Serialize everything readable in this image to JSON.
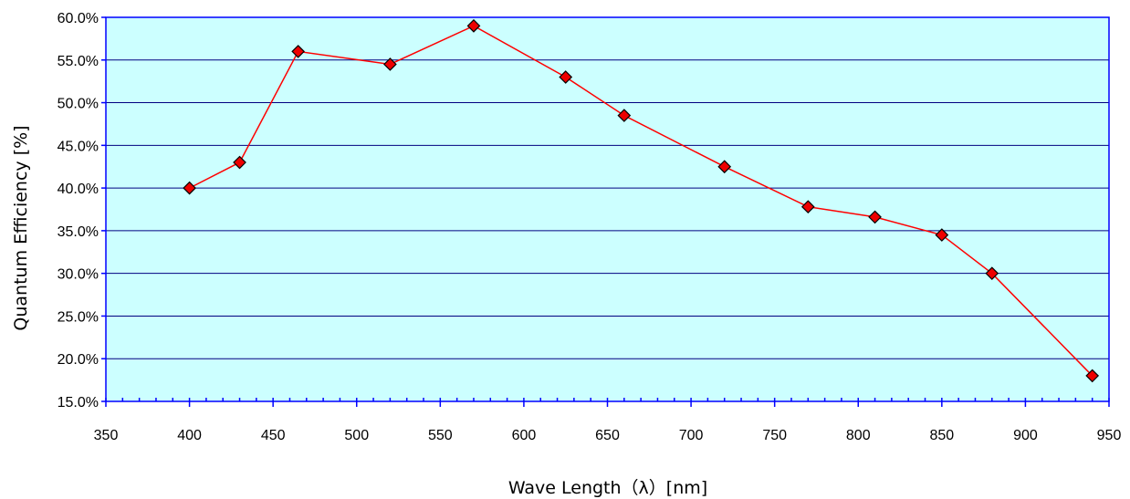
{
  "chart_data": {
    "type": "line",
    "xlabel": "Wave Length（λ）[nm]",
    "ylabel": "Quantum Efficiency [%]",
    "xlim": [
      350,
      950
    ],
    "ylim": [
      15,
      60
    ],
    "x_ticks": [
      "350",
      "400",
      "450",
      "500",
      "550",
      "600",
      "650",
      "700",
      "750",
      "800",
      "850",
      "900",
      "950"
    ],
    "y_ticks": [
      "15.0%",
      "20.0%",
      "25.0%",
      "30.0%",
      "35.0%",
      "40.0%",
      "45.0%",
      "50.0%",
      "55.0%",
      "60.0%"
    ],
    "grid": "horizontal",
    "legend": "none",
    "series": [
      {
        "x": [
          400,
          430,
          465,
          520,
          570,
          625,
          660,
          720,
          770,
          810,
          850,
          880,
          940
        ],
        "y": [
          40.0,
          43.0,
          56.0,
          54.5,
          59.0,
          53.0,
          48.5,
          42.5,
          37.8,
          36.6,
          34.5,
          30.0,
          18.0
        ]
      }
    ],
    "colors": {
      "plot_background": "#ccffff",
      "gridline": "#000080",
      "frame": "#0000ff",
      "line": "#ff0000",
      "marker_fill": "#ee0000",
      "marker_edge": "#000000"
    }
  }
}
